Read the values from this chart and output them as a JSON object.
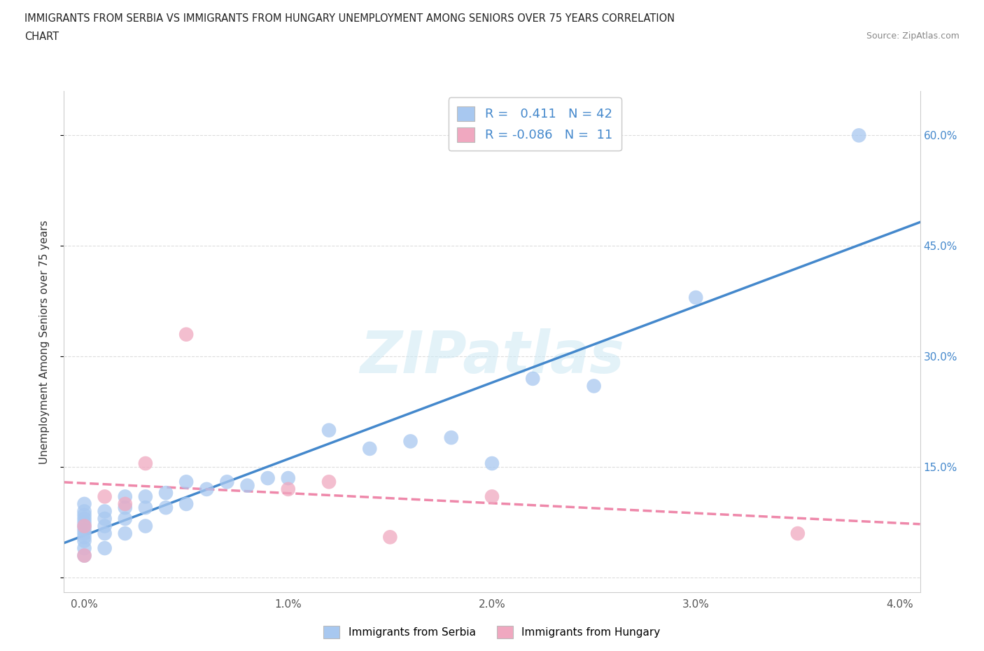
{
  "title_line1": "IMMIGRANTS FROM SERBIA VS IMMIGRANTS FROM HUNGARY UNEMPLOYMENT AMONG SENIORS OVER 75 YEARS CORRELATION",
  "title_line2": "CHART",
  "source_text": "Source: ZipAtlas.com",
  "ylabel": "Unemployment Among Seniors over 75 years",
  "serbia_color": "#a8c8f0",
  "hungary_color": "#f0a8c0",
  "serbia_R": 0.411,
  "serbia_N": 42,
  "hungary_R": -0.086,
  "hungary_N": 11,
  "serbia_line_color": "#4488cc",
  "hungary_line_color": "#ee88aa",
  "watermark_text": "ZIPatlas",
  "serbia_x": [
    0.0,
    0.0,
    0.0,
    0.0,
    0.0,
    0.0,
    0.0,
    0.0,
    0.0,
    0.0,
    0.0,
    0.0,
    0.001,
    0.001,
    0.001,
    0.001,
    0.001,
    0.002,
    0.002,
    0.002,
    0.002,
    0.003,
    0.003,
    0.003,
    0.004,
    0.004,
    0.005,
    0.005,
    0.006,
    0.007,
    0.008,
    0.009,
    0.01,
    0.012,
    0.014,
    0.016,
    0.018,
    0.02,
    0.022,
    0.025,
    0.03,
    0.038
  ],
  "serbia_y": [
    0.03,
    0.04,
    0.05,
    0.055,
    0.06,
    0.065,
    0.07,
    0.075,
    0.08,
    0.085,
    0.09,
    0.1,
    0.04,
    0.06,
    0.07,
    0.08,
    0.09,
    0.06,
    0.08,
    0.095,
    0.11,
    0.07,
    0.095,
    0.11,
    0.095,
    0.115,
    0.1,
    0.13,
    0.12,
    0.13,
    0.125,
    0.135,
    0.135,
    0.2,
    0.175,
    0.185,
    0.19,
    0.155,
    0.27,
    0.26,
    0.38,
    0.6
  ],
  "hungary_x": [
    0.0,
    0.0,
    0.001,
    0.002,
    0.003,
    0.005,
    0.01,
    0.012,
    0.015,
    0.02,
    0.035
  ],
  "hungary_y": [
    0.03,
    0.07,
    0.11,
    0.1,
    0.155,
    0.33,
    0.12,
    0.13,
    0.055,
    0.11,
    0.06
  ],
  "xlim": [
    -0.001,
    0.041
  ],
  "ylim": [
    -0.02,
    0.66
  ],
  "xticks": [
    0.0,
    0.01,
    0.02,
    0.03,
    0.04
  ],
  "xticklabels": [
    "0.0%",
    "1.0%",
    "2.0%",
    "3.0%",
    "4.0%"
  ],
  "yticks": [
    0.0,
    0.15,
    0.3,
    0.45,
    0.6
  ],
  "yticklabels_right": [
    "",
    "15.0%",
    "30.0%",
    "45.0%",
    "60.0%"
  ],
  "grid_color": "#dddddd",
  "background_color": "#ffffff"
}
